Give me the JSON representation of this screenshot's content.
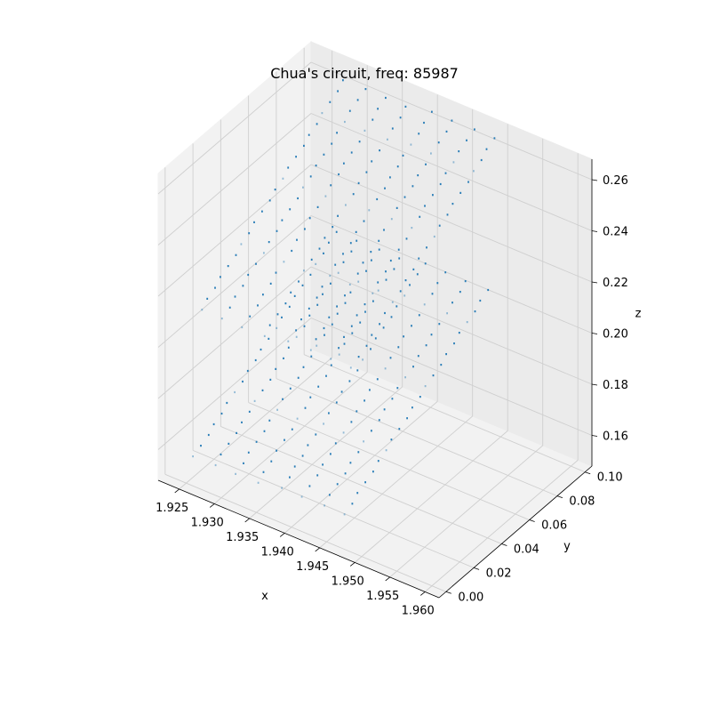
{
  "chart_data": {
    "type": "scatter",
    "projection": "3d",
    "title": "Chua's circuit, freq: 85987",
    "xlabel": "x",
    "ylabel": "y",
    "zlabel": "z",
    "xlim": [
      1.922,
      1.962
    ],
    "ylim": [
      -0.005,
      0.105
    ],
    "zlim": [
      0.148,
      0.268
    ],
    "xticks": [
      "1.925",
      "1.930",
      "1.935",
      "1.940",
      "1.945",
      "1.950",
      "1.955",
      "1.960"
    ],
    "yticks": [
      "0.00",
      "0.02",
      "0.04",
      "0.06",
      "0.08",
      "0.10"
    ],
    "zticks": [
      "0.16",
      "0.18",
      "0.20",
      "0.22",
      "0.24",
      "0.26"
    ],
    "grid": true,
    "marker_color": "#1f77b4",
    "series": [
      {
        "strands": [
          {
            "x": [
              1.926,
              1.9275
            ],
            "y": [
              0.0,
              0.095
            ],
            "z": [
              0.16,
              0.205
            ]
          },
          {
            "x": [
              1.929,
              1.9305
            ],
            "y": [
              0.0,
              0.095
            ],
            "z": [
              0.16,
              0.205
            ]
          },
          {
            "x": [
              1.932,
              1.9335
            ],
            "y": [
              0.0,
              0.095
            ],
            "z": [
              0.16,
              0.205
            ]
          },
          {
            "x": [
              1.935,
              1.9365
            ],
            "y": [
              0.0,
              0.095
            ],
            "z": [
              0.16,
              0.205
            ]
          },
          {
            "x": [
              1.9385,
              1.94
            ],
            "y": [
              0.0,
              0.095
            ],
            "z": [
              0.162,
              0.207
            ]
          },
          {
            "x": [
              1.9415,
              1.943
            ],
            "y": [
              0.0,
              0.095
            ],
            "z": [
              0.162,
              0.207
            ]
          },
          {
            "x": [
              1.9445,
              1.946
            ],
            "y": [
              0.0,
              0.095
            ],
            "z": [
              0.162,
              0.207
            ]
          },
          {
            "x": [
              1.9475,
              1.949
            ],
            "y": [
              0.0,
              0.095
            ],
            "z": [
              0.162,
              0.207
            ]
          },
          {
            "x": [
              1.926,
              1.9275
            ],
            "y": [
              0.005,
              0.1
            ],
            "z": [
              0.215,
              0.262
            ]
          },
          {
            "x": [
              1.929,
              1.9305
            ],
            "y": [
              0.005,
              0.1
            ],
            "z": [
              0.215,
              0.262
            ]
          },
          {
            "x": [
              1.932,
              1.9335
            ],
            "y": [
              0.005,
              0.1
            ],
            "z": [
              0.215,
              0.262
            ]
          },
          {
            "x": [
              1.935,
              1.9365
            ],
            "y": [
              0.005,
              0.1
            ],
            "z": [
              0.215,
              0.262
            ]
          },
          {
            "x": [
              1.9385,
              1.94
            ],
            "y": [
              0.005,
              0.1
            ],
            "z": [
              0.217,
              0.264
            ]
          },
          {
            "x": [
              1.9415,
              1.943
            ],
            "y": [
              0.005,
              0.1
            ],
            "z": [
              0.217,
              0.264
            ]
          },
          {
            "x": [
              1.9445,
              1.946
            ],
            "y": [
              0.005,
              0.1
            ],
            "z": [
              0.217,
              0.264
            ]
          },
          {
            "x": [
              1.9475,
              1.949
            ],
            "y": [
              0.005,
              0.1
            ],
            "z": [
              0.217,
              0.264
            ]
          }
        ],
        "points_per_strand": 22
      }
    ]
  }
}
